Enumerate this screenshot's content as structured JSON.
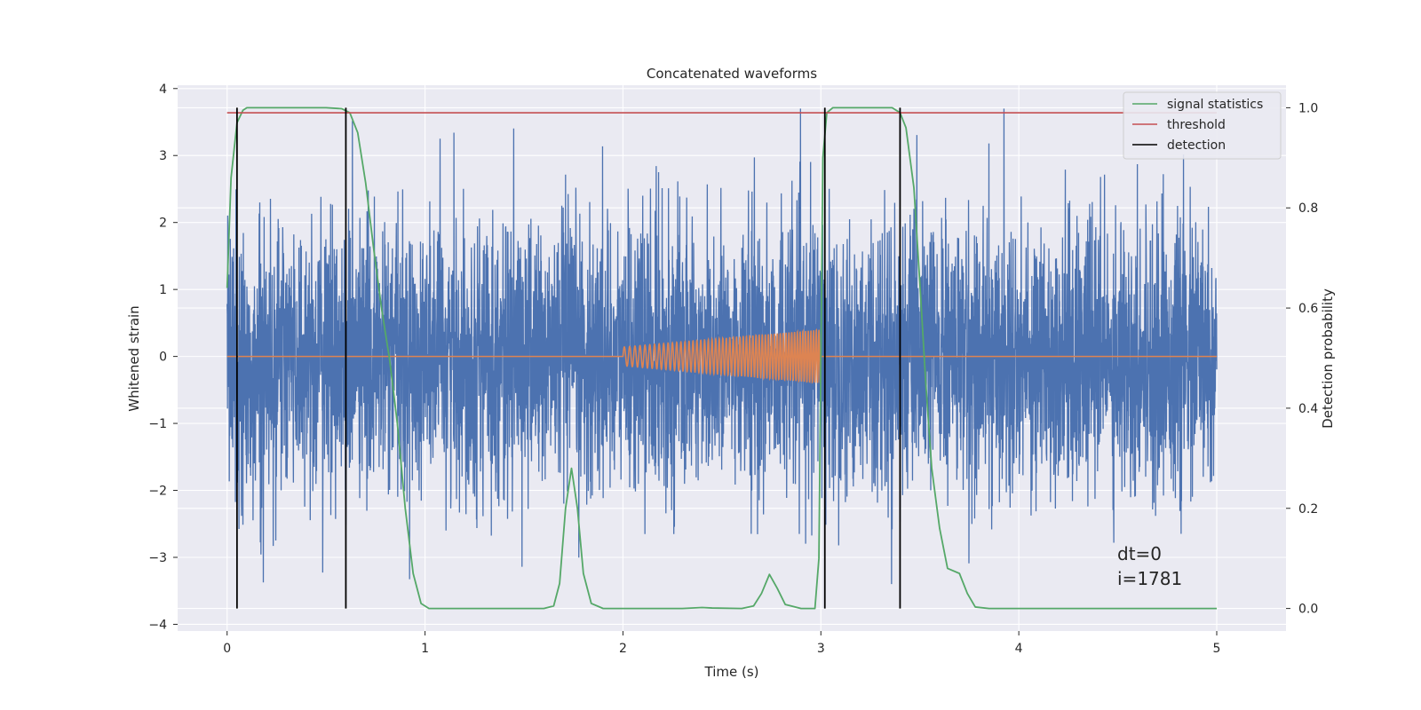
{
  "chart_data": {
    "type": "line",
    "title": "Concatenated waveforms",
    "xlabel": "Time (s)",
    "ylabel": "Whitened strain",
    "ylabel_right": "Detection probability",
    "xlim": [
      -0.25,
      5.35
    ],
    "ylim": [
      -4.1,
      4.05
    ],
    "ylim_right": [
      -0.045,
      1.045
    ],
    "x_ticks": [
      0,
      1,
      2,
      3,
      4,
      5
    ],
    "y_ticks": [
      -4,
      -3,
      -2,
      -1,
      0,
      1,
      2,
      3,
      4
    ],
    "y_ticks_right": [
      0.0,
      0.2,
      0.4,
      0.6,
      0.8,
      1.0
    ],
    "x_tick_labels": [
      "0",
      "1",
      "2",
      "3",
      "4",
      "5"
    ],
    "y_tick_labels": [
      "−4",
      "−3",
      "−2",
      "−1",
      "0",
      "1",
      "2",
      "3",
      "4"
    ],
    "y_tick_labels_right": [
      "0.0",
      "0.2",
      "0.4",
      "0.6",
      "0.8",
      "1.0"
    ],
    "grid": true,
    "legend_position": "top-right",
    "legend": [
      {
        "label": "signal statistics",
        "color": "#55a868"
      },
      {
        "label": "threshold",
        "color": "#c44e52"
      },
      {
        "label": "detection",
        "color": "#000000"
      }
    ],
    "colors": {
      "strain": "#4c72b0",
      "template": "#dd8452",
      "signal_statistics": "#55a868",
      "threshold": "#c44e52",
      "detection": "#000000",
      "plot_background": "#eaeaf2",
      "grid": "#ffffff"
    },
    "series": [
      {
        "key": "strain",
        "axis": "left",
        "x_range": [
          0,
          5
        ],
        "amplitude_typical": 1.0,
        "amplitude_max": 3.7,
        "description_of_shape": "dense noise"
      },
      {
        "key": "template",
        "axis": "left",
        "x_range": [
          0,
          5
        ],
        "chirp_start": 2.0,
        "chirp_end": 3.0,
        "chirp_amp_start": 0.14,
        "chirp_amp_end": 0.4
      },
      {
        "key": "signal_statistics",
        "name": "signal statistics",
        "axis": "right",
        "points": [
          [
            0.0,
            0.64
          ],
          [
            0.02,
            0.86
          ],
          [
            0.05,
            0.97
          ],
          [
            0.08,
            0.995
          ],
          [
            0.1,
            1.0
          ],
          [
            0.3,
            1.0
          ],
          [
            0.5,
            1.0
          ],
          [
            0.58,
            0.998
          ],
          [
            0.62,
            0.99
          ],
          [
            0.66,
            0.95
          ],
          [
            0.7,
            0.85
          ],
          [
            0.74,
            0.72
          ],
          [
            0.78,
            0.6
          ],
          [
            0.82,
            0.5
          ],
          [
            0.86,
            0.37
          ],
          [
            0.9,
            0.2
          ],
          [
            0.94,
            0.07
          ],
          [
            0.98,
            0.01
          ],
          [
            1.02,
            0.0
          ],
          [
            1.6,
            0.0
          ],
          [
            1.65,
            0.005
          ],
          [
            1.68,
            0.05
          ],
          [
            1.71,
            0.2
          ],
          [
            1.74,
            0.28
          ],
          [
            1.77,
            0.2
          ],
          [
            1.8,
            0.07
          ],
          [
            1.84,
            0.01
          ],
          [
            1.9,
            0.0
          ],
          [
            2.3,
            0.0
          ],
          [
            2.4,
            0.002
          ],
          [
            2.45,
            0.001
          ],
          [
            2.6,
            0.0
          ],
          [
            2.66,
            0.005
          ],
          [
            2.7,
            0.03
          ],
          [
            2.74,
            0.068
          ],
          [
            2.78,
            0.04
          ],
          [
            2.82,
            0.008
          ],
          [
            2.9,
            0.0
          ],
          [
            2.97,
            0.0
          ],
          [
            2.99,
            0.1
          ],
          [
            3.01,
            0.9
          ],
          [
            3.03,
            0.99
          ],
          [
            3.06,
            1.0
          ],
          [
            3.3,
            1.0
          ],
          [
            3.36,
            1.0
          ],
          [
            3.4,
            0.99
          ],
          [
            3.43,
            0.96
          ],
          [
            3.47,
            0.84
          ],
          [
            3.5,
            0.65
          ],
          [
            3.53,
            0.45
          ],
          [
            3.56,
            0.28
          ],
          [
            3.6,
            0.16
          ],
          [
            3.64,
            0.08
          ],
          [
            3.7,
            0.07
          ],
          [
            3.74,
            0.03
          ],
          [
            3.78,
            0.003
          ],
          [
            3.85,
            0.0
          ],
          [
            4.5,
            0.0
          ],
          [
            5.0,
            0.0
          ]
        ]
      },
      {
        "key": "threshold",
        "name": "threshold",
        "axis": "right",
        "x_range": [
          0,
          5
        ],
        "value": 0.99
      }
    ],
    "detections": [
      0.05,
      0.6,
      3.02,
      3.4
    ],
    "annotations": [
      "dt=0",
      "i=1781"
    ]
  }
}
